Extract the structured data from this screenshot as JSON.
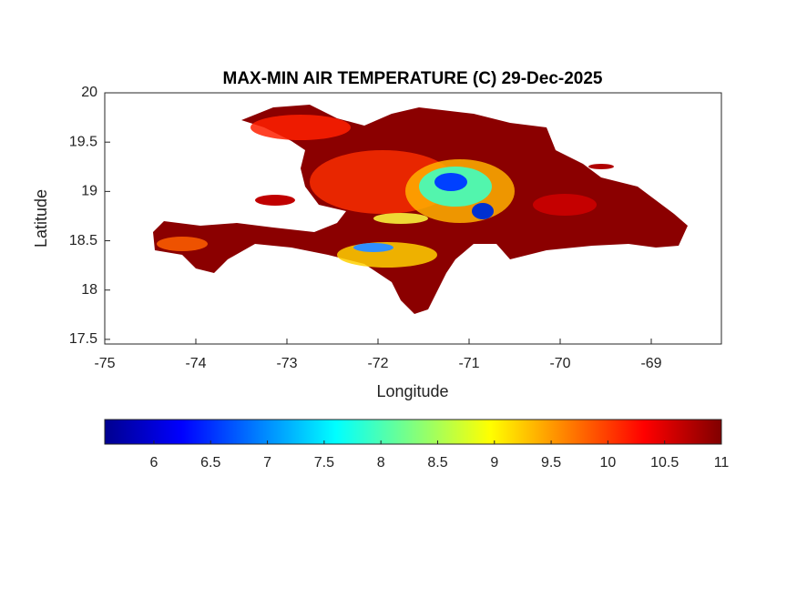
{
  "chart_data": {
    "type": "map",
    "title": "MAX-MIN AIR TEMPERATURE (C) 29-Dec-2025",
    "x_label": "Longitude",
    "y_label": "Latitude",
    "xlim": [
      -75,
      -68.23
    ],
    "xticks": [
      -75,
      -74,
      -73,
      -72,
      -71,
      -70,
      -69
    ],
    "ylim": [
      17.453,
      20
    ],
    "yticks": [
      17.5,
      18,
      18.5,
      19,
      19.5,
      20
    ],
    "colorbar": {
      "lim": [
        5.567,
        11
      ],
      "ticks": [
        6,
        6.5,
        7,
        7.5,
        8,
        8.5,
        9,
        9.5,
        10,
        10.5,
        11
      ]
    }
  }
}
